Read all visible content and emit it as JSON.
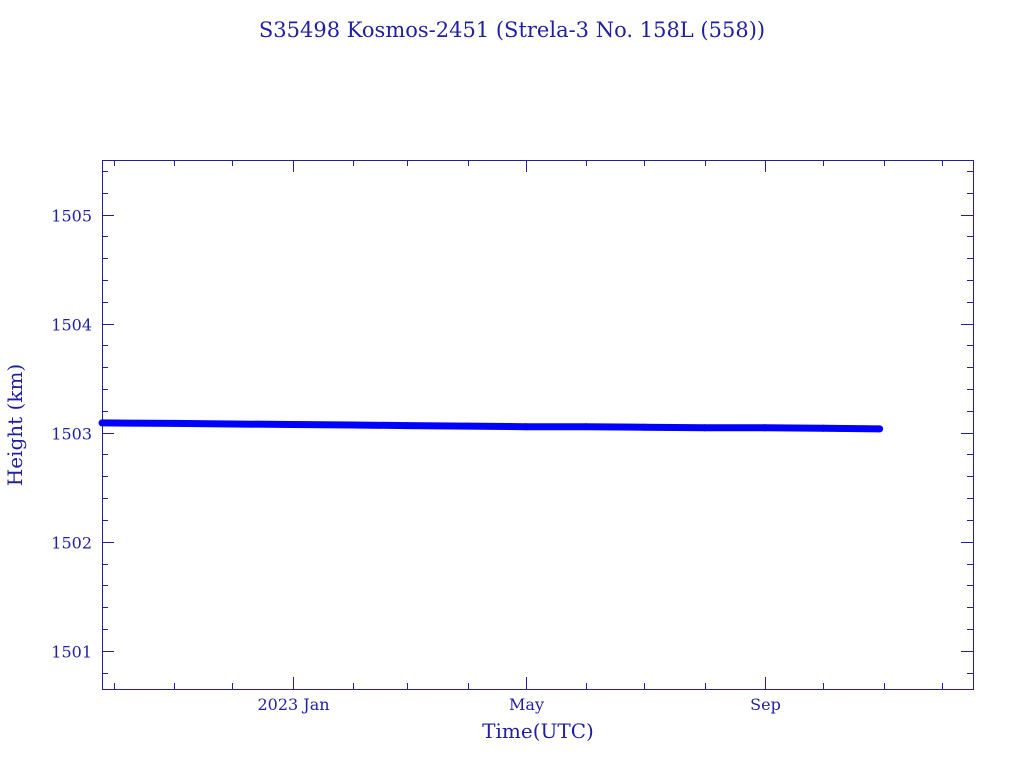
{
  "chart_data": {
    "type": "line",
    "title": "S35498 Kosmos-2451  (Strela-3 No. 158L (558))",
    "xlabel": "Time(UTC)",
    "ylabel": "Height (km)",
    "x_type": "date",
    "xlim": [
      "2022-09-25",
      "2023-12-17"
    ],
    "ylim": [
      1500.65,
      1505.5
    ],
    "x_ticks": [
      {
        "date": "2023-01-01",
        "label": "2023 Jan"
      },
      {
        "date": "2023-05-01",
        "label": "May"
      },
      {
        "date": "2023-09-01",
        "label": "Sep"
      }
    ],
    "y_ticks": [
      {
        "value": 1501,
        "label": "1501"
      },
      {
        "value": 1502,
        "label": "1502"
      },
      {
        "value": 1503,
        "label": "1503"
      },
      {
        "value": 1504,
        "label": "1504"
      },
      {
        "value": 1505,
        "label": "1505"
      }
    ],
    "grid": false,
    "series": [
      {
        "color": "#0000ff",
        "points": [
          {
            "x": "2022-09-25",
            "y": 1503.09
          },
          {
            "x": "2022-11-01",
            "y": 1503.085
          },
          {
            "x": "2022-12-01",
            "y": 1503.08
          },
          {
            "x": "2023-01-01",
            "y": 1503.075
          },
          {
            "x": "2023-02-01",
            "y": 1503.07
          },
          {
            "x": "2023-03-01",
            "y": 1503.065
          },
          {
            "x": "2023-04-01",
            "y": 1503.06
          },
          {
            "x": "2023-05-01",
            "y": 1503.055
          },
          {
            "x": "2023-06-01",
            "y": 1503.055
          },
          {
            "x": "2023-07-01",
            "y": 1503.05
          },
          {
            "x": "2023-08-01",
            "y": 1503.045
          },
          {
            "x": "2023-09-01",
            "y": 1503.045
          },
          {
            "x": "2023-10-01",
            "y": 1503.04
          },
          {
            "x": "2023-10-30",
            "y": 1503.035
          }
        ]
      }
    ]
  }
}
